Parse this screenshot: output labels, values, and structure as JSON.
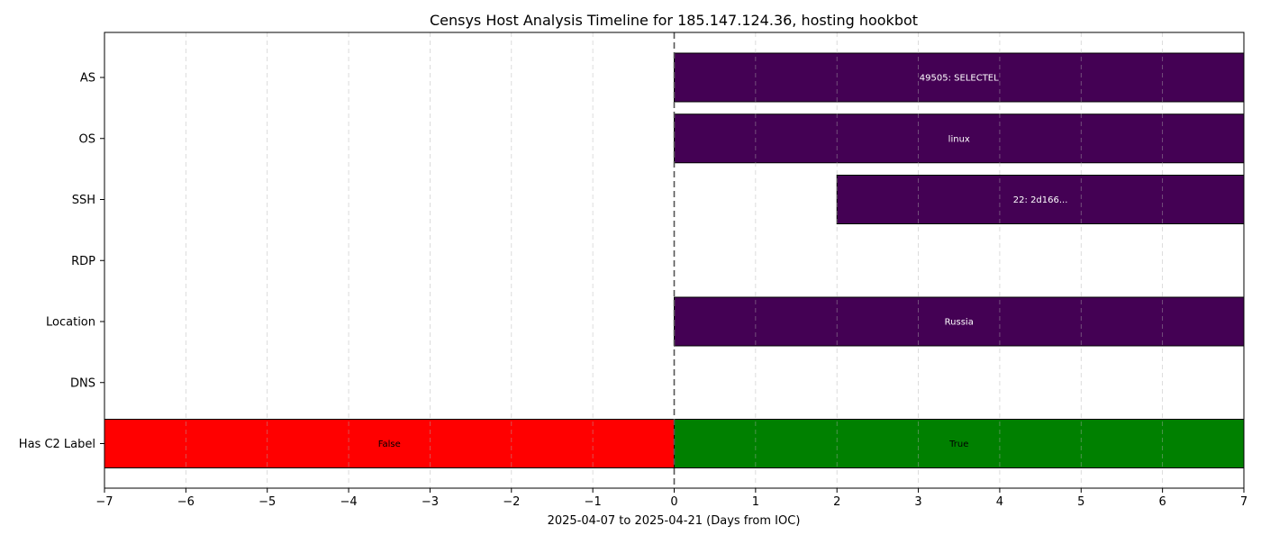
{
  "chart_data": {
    "type": "timeline",
    "title": "Censys Host Analysis Timeline for 185.147.124.36, hosting hookbot",
    "xlabel": "2025-04-07 to 2025-04-21 (Days from IOC)",
    "ylabel": "",
    "xlim": [
      -7,
      7
    ],
    "xticks": [
      -7,
      -6,
      -5,
      -4,
      -3,
      -2,
      -1,
      0,
      1,
      2,
      3,
      4,
      5,
      6,
      7
    ],
    "grid": "x-dashed",
    "ioc_marker_x": 0,
    "rows": [
      {
        "label": "AS",
        "segments": [
          {
            "start": 0,
            "end": 7,
            "label": "49505: SELECTEL",
            "color": "#440154"
          }
        ]
      },
      {
        "label": "OS",
        "segments": [
          {
            "start": 0,
            "end": 7,
            "label": "linux",
            "color": "#440154"
          }
        ]
      },
      {
        "label": "SSH",
        "segments": [
          {
            "start": 2,
            "end": 7,
            "label": "22: 2d166...",
            "color": "#440154"
          }
        ]
      },
      {
        "label": "RDP",
        "segments": []
      },
      {
        "label": "Location",
        "segments": [
          {
            "start": 0,
            "end": 7,
            "label": "Russia",
            "color": "#440154"
          }
        ]
      },
      {
        "label": "DNS",
        "segments": []
      },
      {
        "label": "Has C2 Label",
        "segments": [
          {
            "start": -7,
            "end": 0,
            "label": "False",
            "color": "#ff0000"
          },
          {
            "start": 0,
            "end": 7,
            "label": "True",
            "color": "#008000"
          }
        ]
      }
    ]
  }
}
